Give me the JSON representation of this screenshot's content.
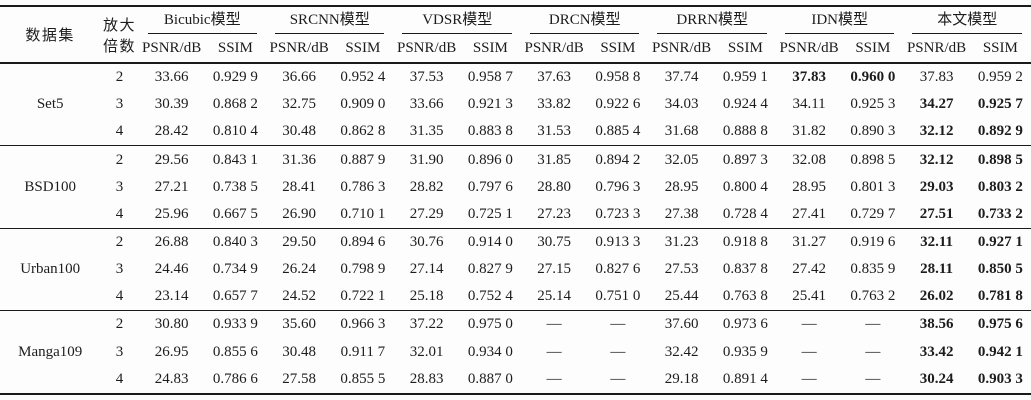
{
  "table": {
    "headers": {
      "dataset": "数据集",
      "scale_line1": "放大",
      "scale_line2": "倍数",
      "models": [
        "Bicubic模型",
        "SRCNN模型",
        "VDSR模型",
        "DRCN模型",
        "DRRN模型",
        "IDN模型",
        "本文模型"
      ],
      "psnr": "PSNR/dB",
      "ssim": "SSIM"
    },
    "groups": [
      {
        "dataset": "Set5",
        "rows": [
          {
            "scale": "2",
            "values": [
              "33.66",
              "0.929 9",
              "36.66",
              "0.952 4",
              "37.53",
              "0.958 7",
              "37.63",
              "0.958 8",
              "37.74",
              "0.959 1",
              "37.83",
              "0.960 0",
              "37.83",
              "0.959 2"
            ],
            "bold": [
              10,
              11
            ]
          },
          {
            "scale": "3",
            "values": [
              "30.39",
              "0.868 2",
              "32.75",
              "0.909 0",
              "33.66",
              "0.921 3",
              "33.82",
              "0.922 6",
              "34.03",
              "0.924 4",
              "34.11",
              "0.925 3",
              "34.27",
              "0.925 7"
            ],
            "bold": [
              12,
              13
            ]
          },
          {
            "scale": "4",
            "values": [
              "28.42",
              "0.810 4",
              "30.48",
              "0.862 8",
              "31.35",
              "0.883 8",
              "31.53",
              "0.885 4",
              "31.68",
              "0.888 8",
              "31.82",
              "0.890 3",
              "32.12",
              "0.892 9"
            ],
            "bold": [
              12,
              13
            ]
          }
        ]
      },
      {
        "dataset": "BSD100",
        "rows": [
          {
            "scale": "2",
            "values": [
              "29.56",
              "0.843 1",
              "31.36",
              "0.887 9",
              "31.90",
              "0.896 0",
              "31.85",
              "0.894 2",
              "32.05",
              "0.897 3",
              "32.08",
              "0.898 5",
              "32.12",
              "0.898 5"
            ],
            "bold": [
              12,
              13
            ]
          },
          {
            "scale": "3",
            "values": [
              "27.21",
              "0.738 5",
              "28.41",
              "0.786 3",
              "28.82",
              "0.797 6",
              "28.80",
              "0.796 3",
              "28.95",
              "0.800 4",
              "28.95",
              "0.801 3",
              "29.03",
              "0.803 2"
            ],
            "bold": [
              12,
              13
            ]
          },
          {
            "scale": "4",
            "values": [
              "25.96",
              "0.667 5",
              "26.90",
              "0.710 1",
              "27.29",
              "0.725 1",
              "27.23",
              "0.723 3",
              "27.38",
              "0.728 4",
              "27.41",
              "0.729 7",
              "27.51",
              "0.733 2"
            ],
            "bold": [
              12,
              13
            ]
          }
        ]
      },
      {
        "dataset": "Urban100",
        "rows": [
          {
            "scale": "2",
            "values": [
              "26.88",
              "0.840 3",
              "29.50",
              "0.894 6",
              "30.76",
              "0.914 0",
              "30.75",
              "0.913 3",
              "31.23",
              "0.918 8",
              "31.27",
              "0.919 6",
              "32.11",
              "0.927 1"
            ],
            "bold": [
              12,
              13
            ]
          },
          {
            "scale": "3",
            "values": [
              "24.46",
              "0.734 9",
              "26.24",
              "0.798 9",
              "27.14",
              "0.827 9",
              "27.15",
              "0.827 6",
              "27.53",
              "0.837 8",
              "27.42",
              "0.835 9",
              "28.11",
              "0.850 5"
            ],
            "bold": [
              12,
              13
            ]
          },
          {
            "scale": "4",
            "values": [
              "23.14",
              "0.657 7",
              "24.52",
              "0.722 1",
              "25.18",
              "0.752 4",
              "25.14",
              "0.751 0",
              "25.44",
              "0.763 8",
              "25.41",
              "0.763 2",
              "26.02",
              "0.781 8"
            ],
            "bold": [
              12,
              13
            ]
          }
        ]
      },
      {
        "dataset": "Manga109",
        "rows": [
          {
            "scale": "2",
            "values": [
              "30.80",
              "0.933 9",
              "35.60",
              "0.966 3",
              "37.22",
              "0.975 0",
              "—",
              "—",
              "37.60",
              "0.973 6",
              "—",
              "—",
              "38.56",
              "0.975 6"
            ],
            "bold": [
              12,
              13
            ]
          },
          {
            "scale": "3",
            "values": [
              "26.95",
              "0.855 6",
              "30.48",
              "0.911 7",
              "32.01",
              "0.934 0",
              "—",
              "—",
              "32.42",
              "0.935 9",
              "—",
              "—",
              "33.42",
              "0.942 1"
            ],
            "bold": [
              12,
              13
            ]
          },
          {
            "scale": "4",
            "values": [
              "24.83",
              "0.786 6",
              "27.58",
              "0.855 5",
              "28.83",
              "0.887 0",
              "—",
              "—",
              "29.18",
              "0.891 4",
              "—",
              "—",
              "30.24",
              "0.903 3"
            ],
            "bold": [
              12,
              13
            ]
          }
        ]
      }
    ]
  }
}
